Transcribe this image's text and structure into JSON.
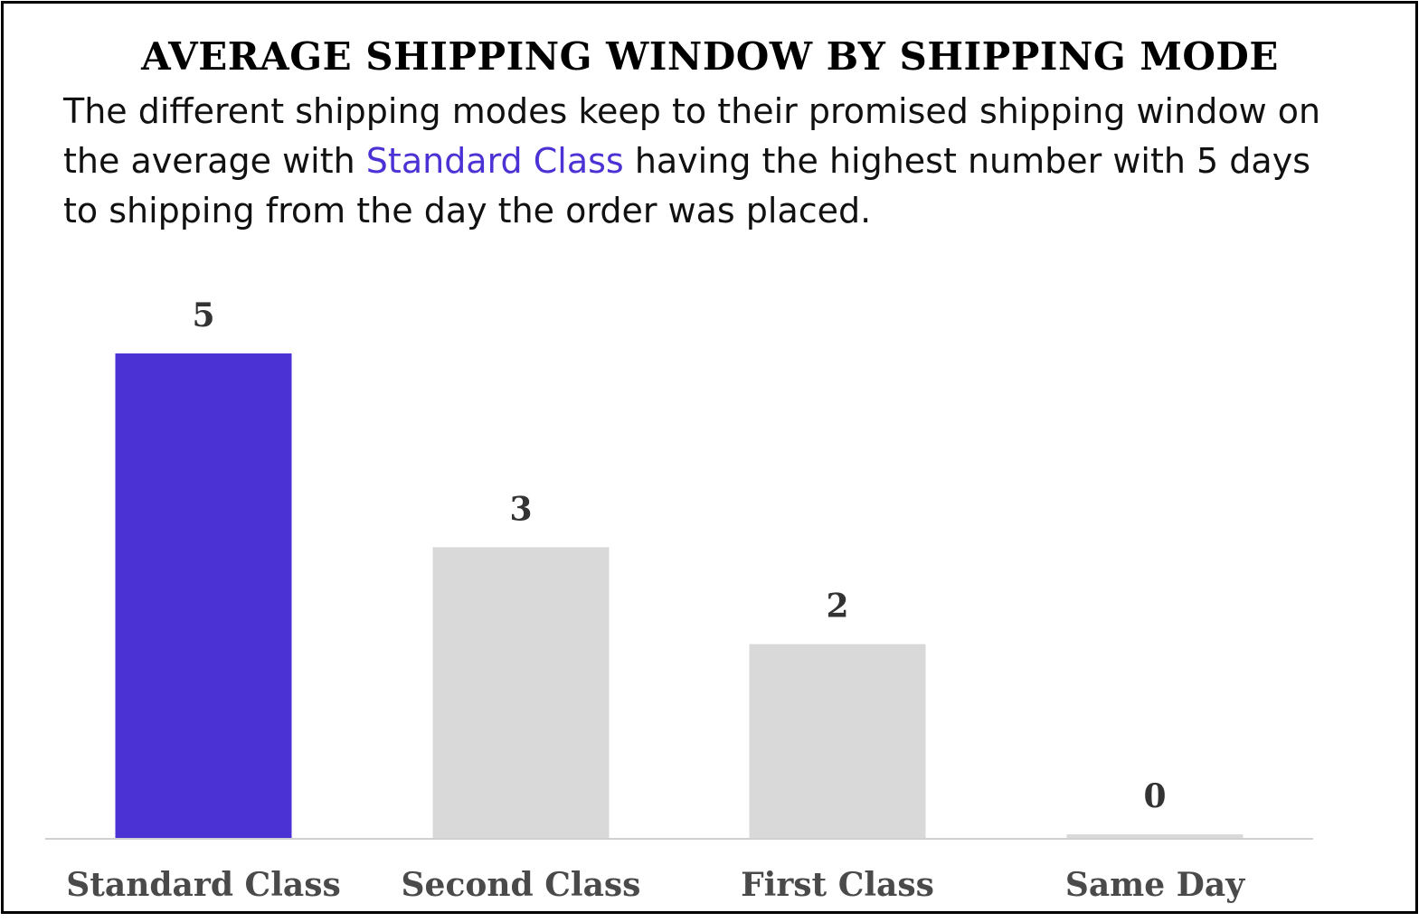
{
  "chart_data": {
    "type": "bar",
    "title": "AVERAGE SHIPPING WINDOW BY SHIPPING MODE",
    "subtitle": {
      "before": "The different shipping modes keep to their promised shipping window on the average with ",
      "highlight": "Standard Class",
      "after": " having the highest number with 5 days to shipping from the day the order was placed."
    },
    "categories": [
      "Standard Class",
      "Second Class",
      "First Class",
      "Same Day"
    ],
    "values": [
      5,
      3,
      2,
      0
    ],
    "value_labels": [
      "5",
      "3",
      "2",
      "0"
    ],
    "xlabel": "",
    "ylabel": "",
    "ylim": [
      0,
      5
    ],
    "grid": false,
    "legend": "none",
    "colors": {
      "highlight": "#4a32d4",
      "default": "#d9d9d9",
      "axis": "#d0d0d0"
    },
    "highlight_index": 0
  }
}
